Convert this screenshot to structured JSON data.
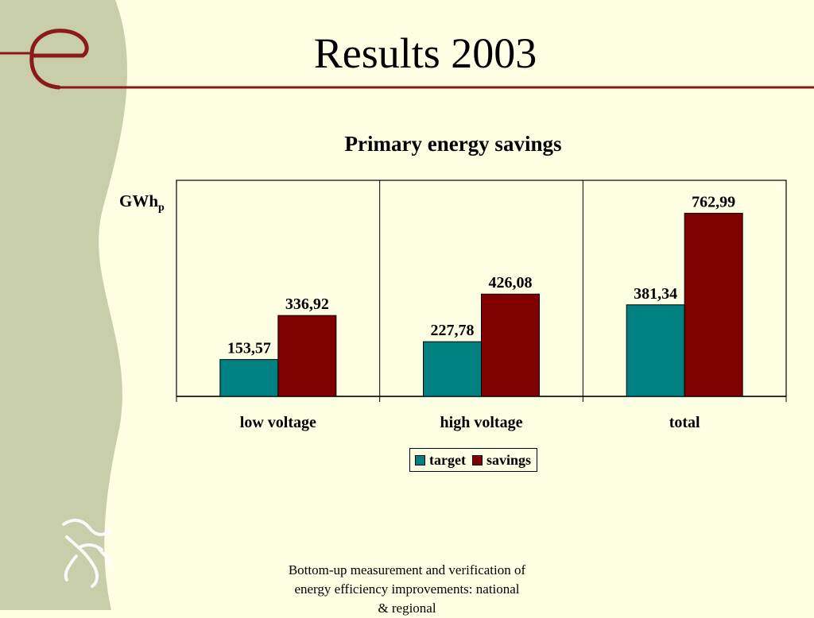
{
  "slide": {
    "title": "Results 2003",
    "footer": "Bottom-up measurement and verification of energy efficiency improvements: national & regional",
    "colors": {
      "background": "#FFFFE3",
      "side_band": "#C8CDAA",
      "accent": "#8B1A1A"
    }
  },
  "chart_data": {
    "type": "bar",
    "title": "Primary energy savings",
    "ylabel_main": "GWh",
    "ylabel_sub": "p",
    "categories": [
      "low voltage",
      "high voltage",
      "total"
    ],
    "series": [
      {
        "name": "target",
        "values": [
          153.57,
          227.78,
          381.34
        ],
        "labels": [
          "153,57",
          "227,78",
          "381,34"
        ],
        "color": "#008080"
      },
      {
        "name": "savings",
        "values": [
          336.92,
          426.08,
          762.99
        ],
        "labels": [
          "336,92",
          "426,08",
          "762,99"
        ],
        "color": "#800000"
      }
    ],
    "ylim": [
      0,
      900
    ],
    "legend": "bottom-center",
    "grid": false
  }
}
